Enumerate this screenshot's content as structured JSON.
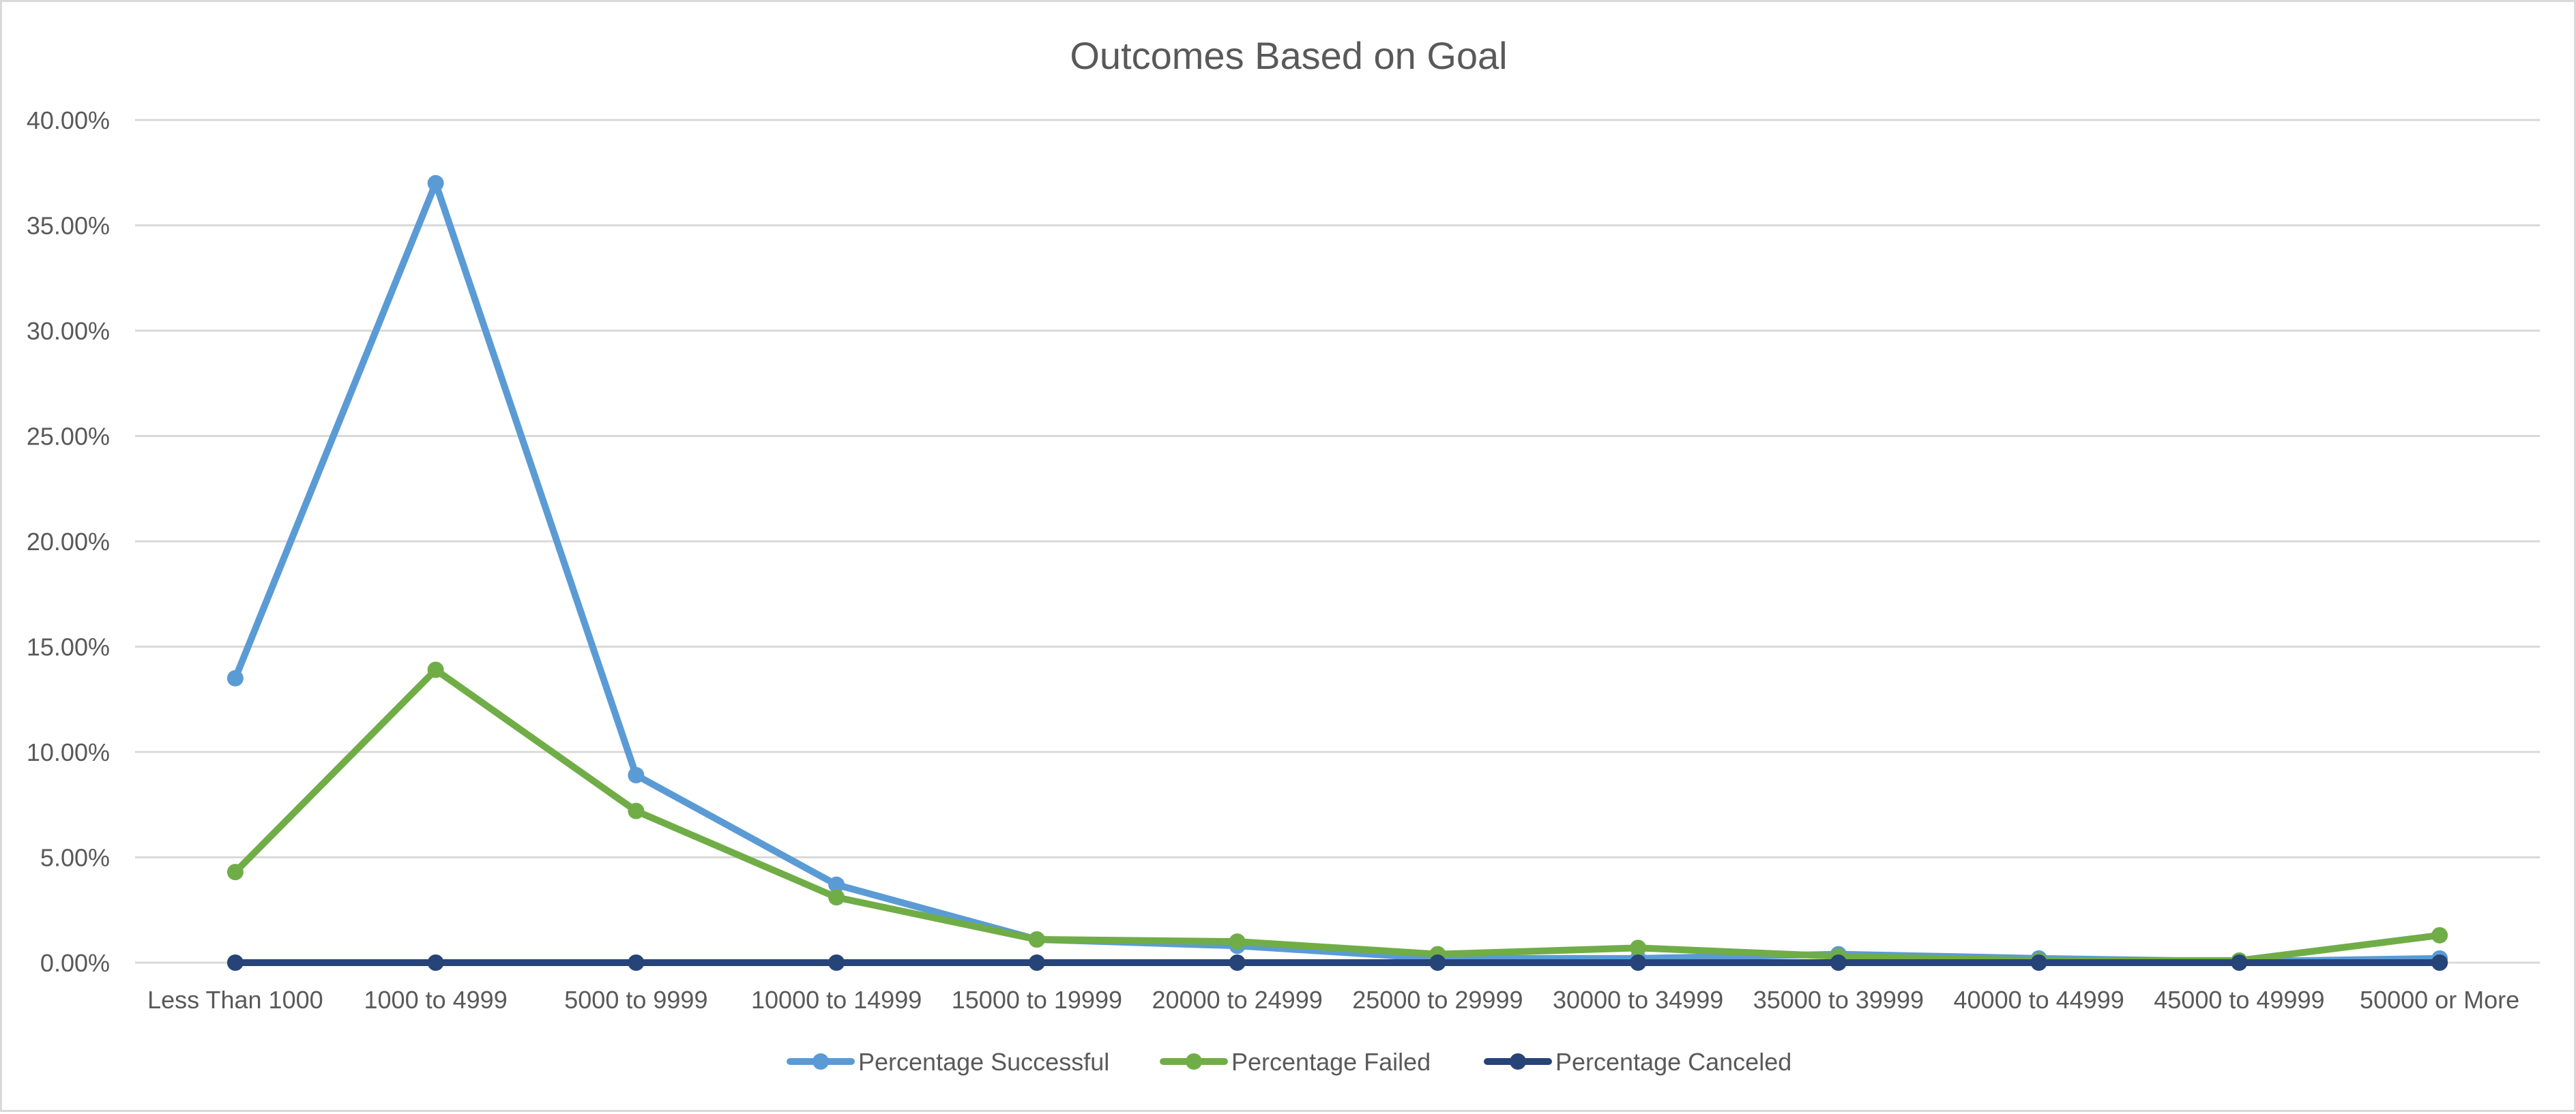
{
  "chart_data": {
    "type": "line",
    "title": "Outcomes Based on Goal",
    "xlabel": "",
    "ylabel": "",
    "categories": [
      "Less Than 1000",
      "1000 to 4999",
      "5000 to 9999",
      "10000 to 14999",
      "15000 to 19999",
      "20000 to 24999",
      "25000 to 29999",
      "30000 to 34999",
      "35000 to 39999",
      "40000 to 44999",
      "45000 to 49999",
      "50000 or More"
    ],
    "ylim": [
      0,
      40
    ],
    "yticks": [
      0,
      5,
      10,
      15,
      20,
      25,
      30,
      35,
      40
    ],
    "ytick_labels": [
      "0.00%",
      "5.00%",
      "10.00%",
      "15.00%",
      "20.00%",
      "25.00%",
      "30.00%",
      "35.00%",
      "40.00%"
    ],
    "grid": true,
    "legend_position": "bottom",
    "series": [
      {
        "name": "Percentage Successful",
        "color": "#5b9bd5",
        "values": [
          13.5,
          37.0,
          8.9,
          3.7,
          1.1,
          0.8,
          0.2,
          0.2,
          0.4,
          0.2,
          0.05,
          0.2
        ]
      },
      {
        "name": "Percentage Failed",
        "color": "#70ad47",
        "values": [
          4.3,
          13.9,
          7.2,
          3.1,
          1.1,
          1.0,
          0.4,
          0.7,
          0.3,
          0.1,
          0.1,
          1.3
        ]
      },
      {
        "name": "Percentage Canceled",
        "color": "#264478",
        "values": [
          0,
          0,
          0,
          0,
          0,
          0,
          0,
          0,
          0,
          0,
          0,
          0
        ]
      }
    ]
  },
  "colors": {
    "gridline": "#d9d9d9",
    "axis_line": "#d9d9d9",
    "text": "#595959",
    "border": "#d9d9d9"
  }
}
